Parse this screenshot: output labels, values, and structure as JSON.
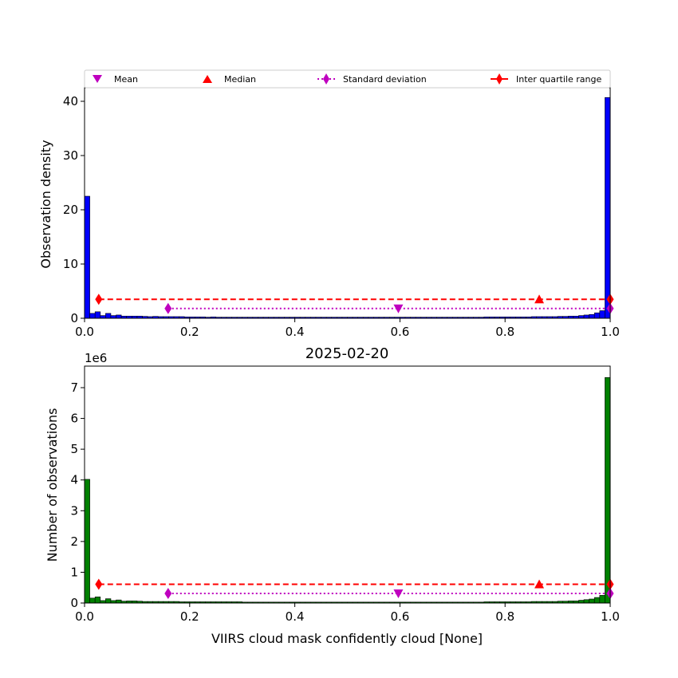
{
  "chart_data": [
    {
      "type": "histogram",
      "ylabel": "Observation density",
      "xlim": [
        0,
        1
      ],
      "ylim": [
        0,
        42.5
      ],
      "xticks": [
        "0.0",
        "0.2",
        "0.4",
        "0.6",
        "0.8",
        "1.0"
      ],
      "yticks": [
        0,
        10,
        20,
        30,
        40
      ],
      "bar_color": "#0000ff",
      "bin_width": 0.01,
      "bins_left_edge": [
        0.0,
        0.01,
        0.02,
        0.03,
        0.04,
        0.05,
        0.06,
        0.07,
        0.08,
        0.09,
        0.1,
        0.11,
        0.12,
        0.13,
        0.14,
        0.15,
        0.16,
        0.17,
        0.18,
        0.19,
        0.2,
        0.21,
        0.22,
        0.23,
        0.24,
        0.25,
        0.26,
        0.27,
        0.28,
        0.29,
        0.3,
        0.31,
        0.32,
        0.33,
        0.34,
        0.35,
        0.36,
        0.37,
        0.38,
        0.39,
        0.4,
        0.41,
        0.42,
        0.43,
        0.44,
        0.45,
        0.46,
        0.47,
        0.48,
        0.49,
        0.5,
        0.51,
        0.52,
        0.53,
        0.54,
        0.55,
        0.56,
        0.57,
        0.58,
        0.59,
        0.6,
        0.61,
        0.62,
        0.63,
        0.64,
        0.65,
        0.66,
        0.67,
        0.68,
        0.69,
        0.7,
        0.71,
        0.72,
        0.73,
        0.74,
        0.75,
        0.76,
        0.77,
        0.78,
        0.79,
        0.8,
        0.81,
        0.82,
        0.83,
        0.84,
        0.85,
        0.86,
        0.87,
        0.88,
        0.89,
        0.9,
        0.91,
        0.92,
        0.93,
        0.94,
        0.95,
        0.96,
        0.97,
        0.98,
        0.99
      ],
      "values": [
        22.5,
        0.9,
        1.2,
        0.5,
        0.9,
        0.5,
        0.6,
        0.4,
        0.4,
        0.4,
        0.4,
        0.35,
        0.3,
        0.35,
        0.3,
        0.3,
        0.3,
        0.3,
        0.3,
        0.25,
        0.25,
        0.25,
        0.25,
        0.2,
        0.25,
        0.2,
        0.2,
        0.2,
        0.2,
        0.2,
        0.2,
        0.2,
        0.2,
        0.2,
        0.2,
        0.2,
        0.2,
        0.2,
        0.2,
        0.2,
        0.2,
        0.2,
        0.2,
        0.2,
        0.2,
        0.2,
        0.2,
        0.2,
        0.2,
        0.2,
        0.2,
        0.2,
        0.2,
        0.2,
        0.2,
        0.2,
        0.2,
        0.2,
        0.2,
        0.2,
        0.2,
        0.2,
        0.2,
        0.2,
        0.2,
        0.2,
        0.2,
        0.2,
        0.2,
        0.2,
        0.2,
        0.2,
        0.2,
        0.2,
        0.2,
        0.2,
        0.25,
        0.25,
        0.25,
        0.25,
        0.25,
        0.25,
        0.25,
        0.25,
        0.25,
        0.3,
        0.3,
        0.3,
        0.3,
        0.3,
        0.35,
        0.35,
        0.4,
        0.4,
        0.5,
        0.6,
        0.7,
        1.0,
        1.4,
        40.7
      ],
      "stats": {
        "mean": {
          "x": 0.597,
          "y": 1.8
        },
        "median": {
          "x": 0.865,
          "y": 3.5
        },
        "std_dev": {
          "x": [
            0.159,
            1.0
          ],
          "y": 1.8
        },
        "iqr": {
          "x": [
            0.027,
            1.0
          ],
          "y": 3.5
        }
      }
    },
    {
      "type": "histogram",
      "title": "2025-02-20",
      "xlabel": "VIIRS cloud mask confidently cloud [None]",
      "ylabel": "Number of observations",
      "offset_label": "1e6",
      "xlim": [
        0,
        1
      ],
      "ylim": [
        0,
        7.7
      ],
      "xticks": [
        "0.0",
        "0.2",
        "0.4",
        "0.6",
        "0.8",
        "1.0"
      ],
      "yticks": [
        0,
        1,
        2,
        3,
        4,
        5,
        6,
        7
      ],
      "bar_color": "#008000",
      "bin_width": 0.01,
      "values": [
        4.02,
        0.16,
        0.2,
        0.08,
        0.14,
        0.08,
        0.1,
        0.06,
        0.07,
        0.07,
        0.06,
        0.05,
        0.05,
        0.05,
        0.05,
        0.05,
        0.05,
        0.05,
        0.04,
        0.04,
        0.04,
        0.04,
        0.04,
        0.04,
        0.04,
        0.04,
        0.04,
        0.04,
        0.04,
        0.04,
        0.03,
        0.03,
        0.03,
        0.03,
        0.03,
        0.03,
        0.03,
        0.03,
        0.03,
        0.03,
        0.03,
        0.03,
        0.03,
        0.03,
        0.03,
        0.03,
        0.03,
        0.03,
        0.03,
        0.03,
        0.03,
        0.03,
        0.03,
        0.03,
        0.03,
        0.03,
        0.03,
        0.03,
        0.03,
        0.03,
        0.03,
        0.03,
        0.03,
        0.03,
        0.03,
        0.03,
        0.03,
        0.03,
        0.03,
        0.03,
        0.03,
        0.03,
        0.03,
        0.03,
        0.03,
        0.03,
        0.04,
        0.04,
        0.04,
        0.04,
        0.04,
        0.04,
        0.04,
        0.04,
        0.04,
        0.05,
        0.05,
        0.05,
        0.05,
        0.05,
        0.06,
        0.06,
        0.07,
        0.07,
        0.09,
        0.11,
        0.13,
        0.18,
        0.25,
        7.33
      ],
      "stats": {
        "mean": {
          "x": 0.597,
          "y": 0.31
        },
        "median": {
          "x": 0.865,
          "y": 0.61
        },
        "std_dev": {
          "x": [
            0.159,
            1.0
          ],
          "y": 0.31
        },
        "iqr": {
          "x": [
            0.027,
            1.0
          ],
          "y": 0.61
        }
      }
    }
  ],
  "legend": {
    "position": "top",
    "items": [
      {
        "label": "Mean",
        "marker": "triangle-down",
        "color": "#bf00bf",
        "line": "none"
      },
      {
        "label": "Median",
        "marker": "triangle-up",
        "color": "#ff0000",
        "line": "none"
      },
      {
        "label": "Standard deviation",
        "marker": "diamond",
        "color": "#bf00bf",
        "line": "dotted"
      },
      {
        "label": "Inter quartile range",
        "marker": "diamond",
        "color": "#ff0000",
        "line": "solid"
      }
    ]
  },
  "colors": {
    "mean": "#bf00bf",
    "median": "#ff0000",
    "std_dev": "#bf00bf",
    "iqr": "#ff0000"
  }
}
